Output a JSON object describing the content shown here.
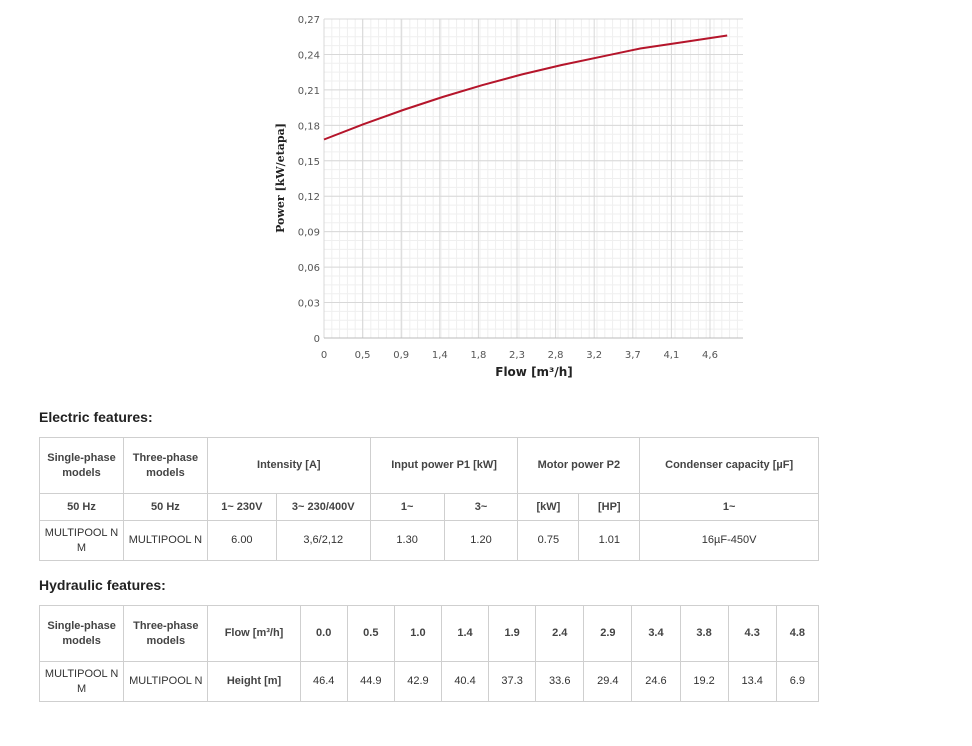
{
  "chart_data": {
    "type": "line",
    "xlabel": "Flow [m³/h]",
    "ylabel": "Power [kW/etapa]",
    "xlim": [
      0,
      5.3
    ],
    "ylim": [
      0,
      0.27
    ],
    "x_ticks": [
      "0",
      "0,5",
      "0,9",
      "1,4",
      "1,8",
      "2,3",
      "2,8",
      "3,2",
      "3,7",
      "4,1",
      "4,6"
    ],
    "y_ticks": [
      "0",
      "0,03",
      "0,06",
      "0,09",
      "0,12",
      "0,15",
      "0,18",
      "0,21",
      "0,24",
      "0,27"
    ],
    "grid": true,
    "series": [
      {
        "color": "#b5152b",
        "x": [
          0,
          0.5,
          1.0,
          1.5,
          2.0,
          2.5,
          3.0,
          3.5,
          4.0,
          4.5,
          5.1
        ],
        "y": [
          0.168,
          0.181,
          0.193,
          0.204,
          0.214,
          0.223,
          0.231,
          0.238,
          0.245,
          0.25,
          0.256
        ]
      }
    ]
  },
  "electric": {
    "title": "Electric features:",
    "single_phase": "Single-phase models",
    "three_phase": "Three-phase models",
    "intensity": "Intensity [A]",
    "input_power": "Input power P1 [kW]",
    "motor_power": "Motor power P2",
    "condenser": "Condenser capacity [µF]",
    "hz_single": "50 Hz",
    "hz_three": "50 Hz",
    "i_single": "1~ 230V",
    "i_three": "3~ 230/400V",
    "p1_single": "1~",
    "p1_three": "3~",
    "p2_kw": "[kW]",
    "p2_hp": "[HP]",
    "cond_single": "1~",
    "model_single": "MULTIPOOL N M",
    "model_three": "MULTIPOOL N",
    "v_i_single": "6.00",
    "v_i_three": "3,6/2,12",
    "v_p1_single": "1.30",
    "v_p1_three": "1.20",
    "v_p2_kw": "0.75",
    "v_p2_hp": "1.01",
    "v_cond": "16µF-450V"
  },
  "hydraulic": {
    "title": "Hydraulic features:",
    "single_phase": "Single-phase models",
    "three_phase": "Three-phase models",
    "flow_label": "Flow [m³/h]",
    "height_label": "Height [m]",
    "model_single": "MULTIPOOL N M",
    "model_three": "MULTIPOOL N",
    "flows": [
      "0.0",
      "0.5",
      "1.0",
      "1.4",
      "1.9",
      "2.4",
      "2.9",
      "3.4",
      "3.8",
      "4.3",
      "4.8"
    ],
    "heights": [
      "46.4",
      "44.9",
      "42.9",
      "40.4",
      "37.3",
      "33.6",
      "29.4",
      "24.6",
      "19.2",
      "13.4",
      "6.9"
    ]
  }
}
